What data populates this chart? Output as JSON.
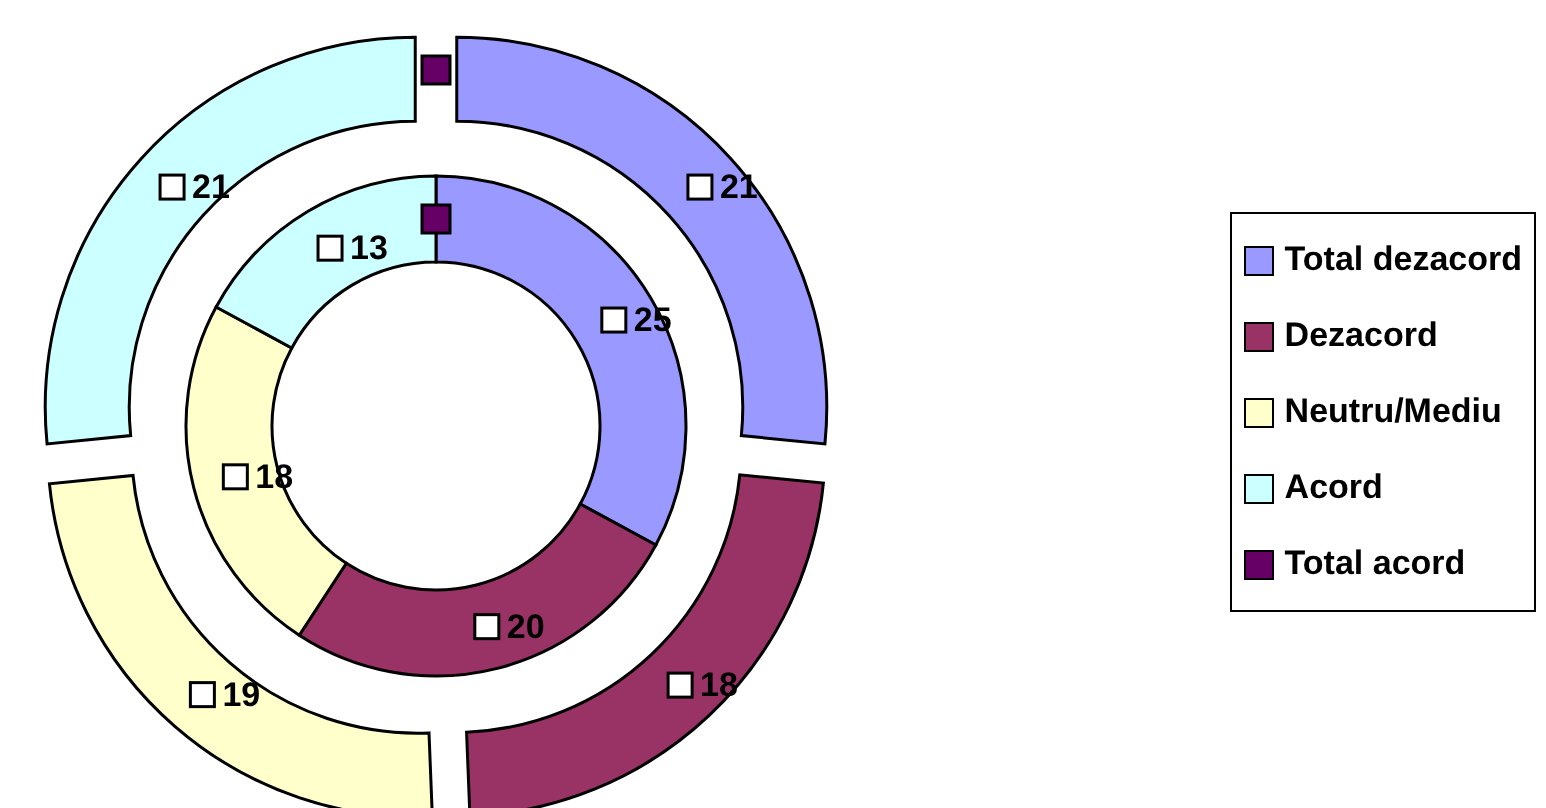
{
  "chart_data": {
    "type": "donut",
    "categories": [
      "Total dezacord",
      "Dezacord",
      "Neutru/Mediu",
      "Acord",
      "Total acord"
    ],
    "colors": [
      "#9999ff",
      "#993366",
      "#ffffcc",
      "#ccffff",
      "#660066"
    ],
    "series": [
      {
        "values": [
          25,
          20,
          18,
          13,
          0
        ],
        "value_labels": [
          "25",
          "20",
          "18",
          "13",
          null
        ]
      },
      {
        "values": [
          21,
          18,
          19,
          21,
          0
        ],
        "value_labels": [
          "21",
          "18",
          "19",
          "21",
          null
        ]
      }
    ],
    "legend": "right"
  }
}
